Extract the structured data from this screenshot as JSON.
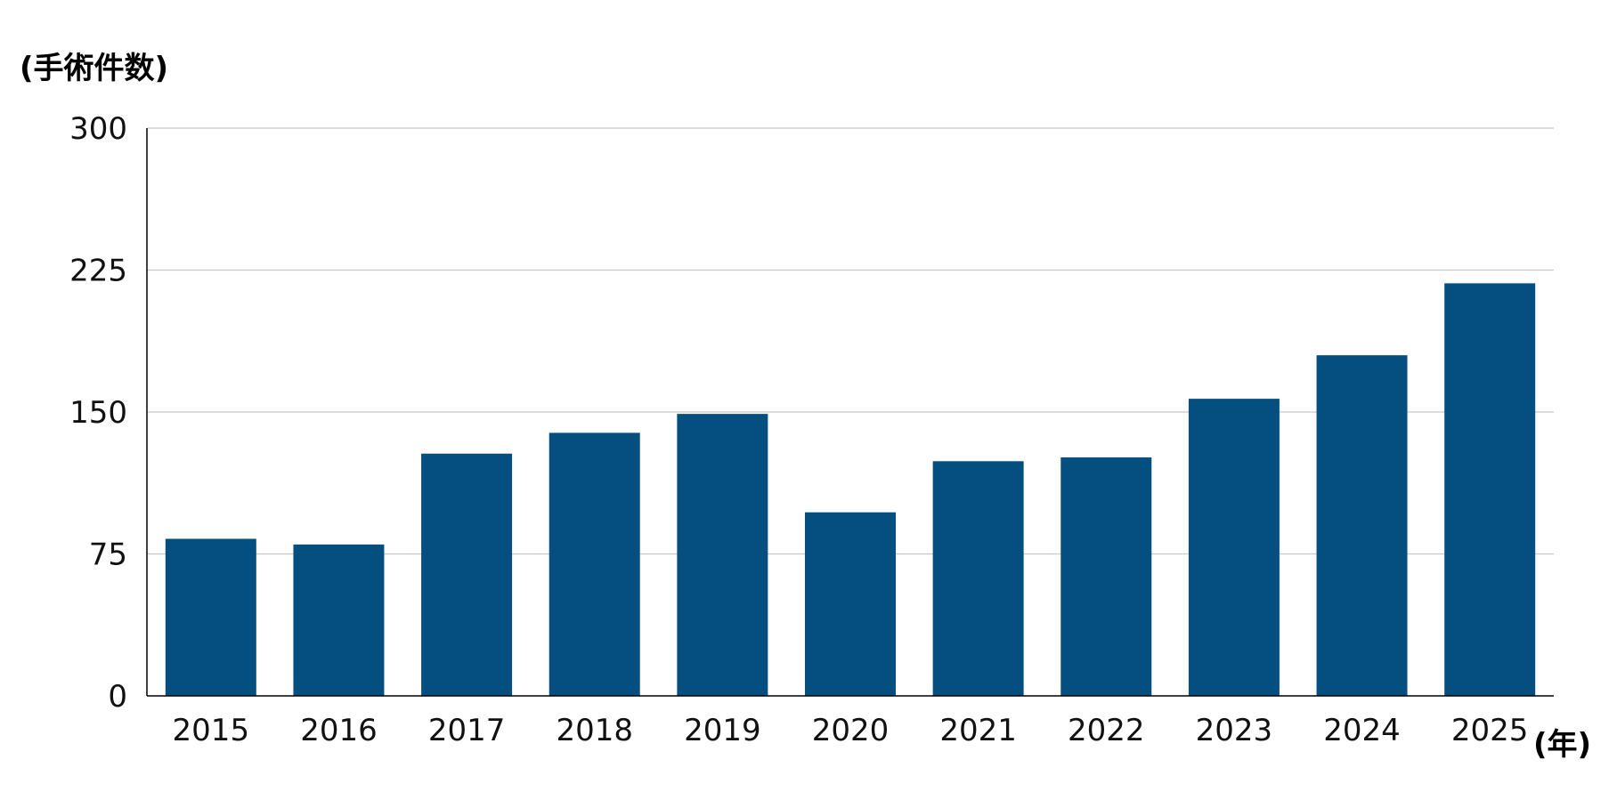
{
  "chart_data": {
    "type": "bar",
    "ylabel": "(手術件数)",
    "xlabel": "(年)",
    "categories": [
      "2015",
      "2016",
      "2017",
      "2018",
      "2019",
      "2020",
      "2021",
      "2022",
      "2023",
      "2024",
      "2025"
    ],
    "series": [
      {
        "values": [
          83,
          80,
          128,
          139,
          149,
          97,
          124,
          126,
          157,
          180,
          218
        ]
      }
    ],
    "ylim": [
      0,
      300
    ],
    "yticks": [
      0,
      75,
      150,
      225,
      300
    ],
    "grid": true,
    "legend": "none",
    "colors": {
      "bar": "#044E80",
      "grid": "#c8c8c8",
      "axis": "#000000"
    }
  }
}
